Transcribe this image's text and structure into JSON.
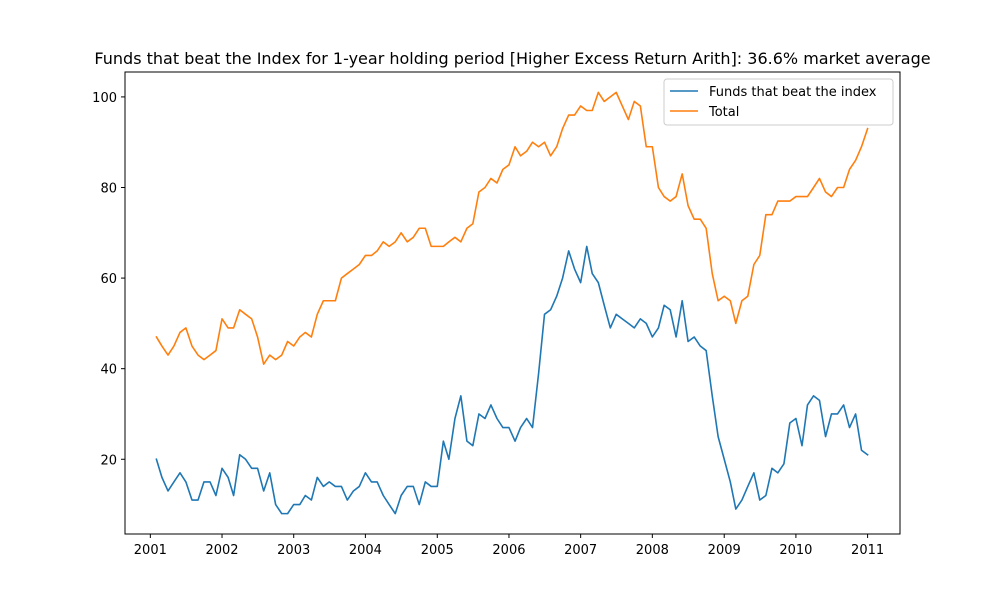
{
  "chart_data": {
    "type": "line",
    "title": "Funds that beat the Index for 1-year holding period [Higher Excess Return Arith]: 36.6% market average",
    "xlabel": "",
    "ylabel": "",
    "xlim": [
      "2000-08-25",
      "2011-06-15"
    ],
    "ylim": [
      3.5,
      105.5
    ],
    "x_ticks": [
      "2001",
      "2002",
      "2003",
      "2004",
      "2005",
      "2006",
      "2007",
      "2008",
      "2009",
      "2010",
      "2011"
    ],
    "y_ticks": [
      20,
      40,
      60,
      80,
      100
    ],
    "grid": false,
    "legend": {
      "placement": "upper right"
    },
    "x": [
      "2001-02",
      "2001-03",
      "2001-04",
      "2001-05",
      "2001-06",
      "2001-07",
      "2001-08",
      "2001-09",
      "2001-10",
      "2001-11",
      "2001-12",
      "2002-01",
      "2002-02",
      "2002-03",
      "2002-04",
      "2002-05",
      "2002-06",
      "2002-07",
      "2002-08",
      "2002-09",
      "2002-10",
      "2002-11",
      "2002-12",
      "2003-01",
      "2003-02",
      "2003-03",
      "2003-04",
      "2003-05",
      "2003-06",
      "2003-07",
      "2003-08",
      "2003-09",
      "2003-10",
      "2003-11",
      "2003-12",
      "2004-01",
      "2004-02",
      "2004-03",
      "2004-04",
      "2004-05",
      "2004-06",
      "2004-07",
      "2004-08",
      "2004-09",
      "2004-10",
      "2004-11",
      "2004-12",
      "2005-01",
      "2005-02",
      "2005-03",
      "2005-04",
      "2005-05",
      "2005-06",
      "2005-07",
      "2005-08",
      "2005-09",
      "2005-10",
      "2005-11",
      "2005-12",
      "2006-01",
      "2006-02",
      "2006-03",
      "2006-04",
      "2006-05",
      "2006-06",
      "2006-07",
      "2006-08",
      "2006-09",
      "2006-10",
      "2006-11",
      "2006-12",
      "2007-01",
      "2007-02",
      "2007-03",
      "2007-04",
      "2007-05",
      "2007-06",
      "2007-07",
      "2007-08",
      "2007-09",
      "2007-10",
      "2007-11",
      "2007-12",
      "2008-01",
      "2008-02",
      "2008-03",
      "2008-04",
      "2008-05",
      "2008-06",
      "2008-07",
      "2008-08",
      "2008-09",
      "2008-10",
      "2008-11",
      "2008-12",
      "2009-01",
      "2009-02",
      "2009-03",
      "2009-04",
      "2009-05",
      "2009-06",
      "2009-07",
      "2009-08",
      "2009-09",
      "2009-10",
      "2009-11",
      "2009-12",
      "2010-01",
      "2010-02",
      "2010-03",
      "2010-04",
      "2010-05",
      "2010-06",
      "2010-07",
      "2010-08",
      "2010-09",
      "2010-10",
      "2010-11",
      "2010-12",
      "2011-01"
    ],
    "series": [
      {
        "name": "Funds that beat the index",
        "color": "#1f77b4",
        "values": [
          20,
          16,
          13,
          15,
          17,
          15,
          11,
          11,
          15,
          15,
          12,
          18,
          16,
          12,
          21,
          20,
          18,
          18,
          13,
          17,
          10,
          8,
          8,
          10,
          10,
          12,
          11,
          16,
          14,
          15,
          14,
          14,
          11,
          13,
          14,
          17,
          15,
          15,
          12,
          10,
          8,
          12,
          14,
          14,
          10,
          15,
          14,
          14,
          24,
          20,
          29,
          34,
          24,
          23,
          30,
          29,
          32,
          29,
          27,
          27,
          24,
          27,
          29,
          27,
          39,
          52,
          53,
          56,
          60,
          66,
          62,
          59,
          67,
          61,
          59,
          54,
          49,
          52,
          51,
          50,
          49,
          51,
          50,
          47,
          49,
          54,
          53,
          47,
          55,
          46,
          47,
          45,
          44,
          34,
          25,
          20,
          15,
          9,
          11,
          14,
          17,
          11,
          12,
          18,
          17,
          19,
          28,
          29,
          23,
          32,
          34,
          33,
          25,
          30,
          30,
          32,
          27,
          30,
          22,
          21
        ]
      },
      {
        "name": "Total",
        "color": "#ff7f0e",
        "values": [
          47,
          45,
          43,
          45,
          48,
          49,
          45,
          43,
          42,
          43,
          44,
          51,
          49,
          49,
          53,
          52,
          51,
          47,
          41,
          43,
          42,
          43,
          46,
          45,
          47,
          48,
          47,
          52,
          55,
          55,
          55,
          60,
          61,
          62,
          63,
          65,
          65,
          66,
          68,
          67,
          68,
          70,
          68,
          69,
          71,
          71,
          67,
          67,
          67,
          68,
          69,
          68,
          71,
          72,
          79,
          80,
          82,
          81,
          84,
          85,
          89,
          87,
          88,
          90,
          89,
          90,
          87,
          89,
          93,
          96,
          96,
          98,
          97,
          97,
          101,
          99,
          100,
          101,
          98,
          95,
          99,
          98,
          89,
          89,
          80,
          78,
          77,
          78,
          83,
          76,
          73,
          73,
          71,
          61,
          55,
          56,
          55,
          50,
          55,
          56,
          63,
          65,
          74,
          74,
          77,
          77,
          77,
          78,
          78,
          78,
          80,
          82,
          79,
          78,
          80,
          80,
          84,
          86,
          89,
          93
        ]
      }
    ]
  }
}
